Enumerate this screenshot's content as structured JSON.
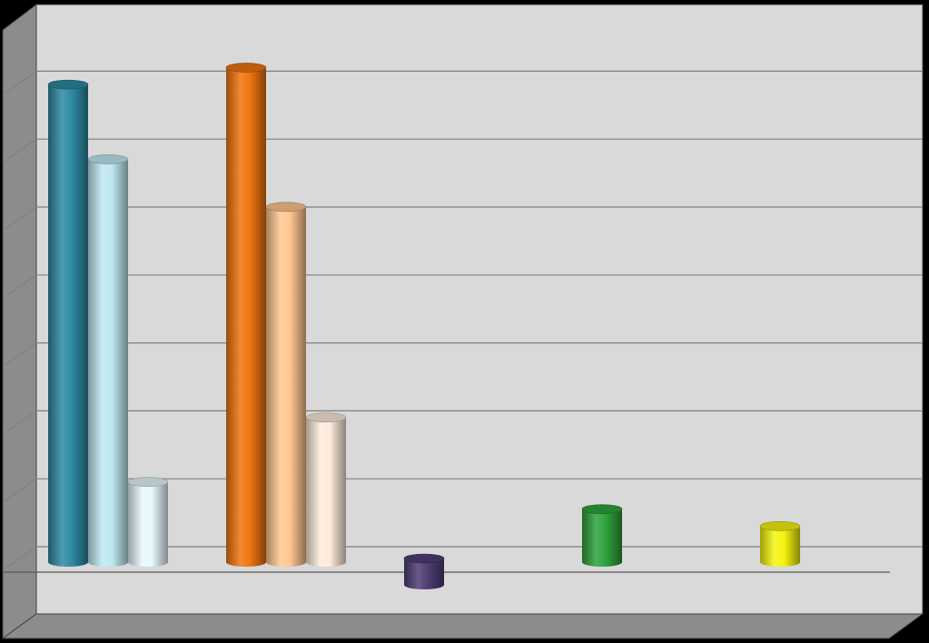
{
  "chart_data": {
    "type": "bar",
    "style": "3d-cylinder",
    "title": "",
    "xlabel": "",
    "ylabel": "",
    "ylim": [
      0,
      7
    ],
    "gridlines": true,
    "tick_labels_shown": false,
    "legend": "none",
    "colors": {
      "background": "#000000",
      "plot_back_wall": "#d9d9d9",
      "side_wall": "#8c8c8c",
      "floor": "#8c8c8c",
      "gridline": "#7f7f7f"
    },
    "groups": [
      {
        "bars": [
          {
            "value": 6.95,
            "color": "#2e8aa2"
          },
          {
            "value": 5.85,
            "color": "#bfe8f1"
          },
          {
            "value": 1.1,
            "color": "#e6f8fc"
          }
        ]
      },
      {
        "bars": [
          {
            "value": 7.2,
            "color": "#f07410"
          },
          {
            "value": 5.15,
            "color": "#ffc690"
          },
          {
            "value": 2.05,
            "color": "#fdebdc"
          }
        ]
      },
      {
        "bars": [
          {
            "value": -0.2,
            "color": "#4e3d74"
          }
        ]
      },
      {
        "bars": [
          {
            "value": 0.7,
            "color": "#2ea23c"
          }
        ]
      },
      {
        "bars": [
          {
            "value": 0.45,
            "color": "#f4f410"
          }
        ]
      }
    ]
  }
}
